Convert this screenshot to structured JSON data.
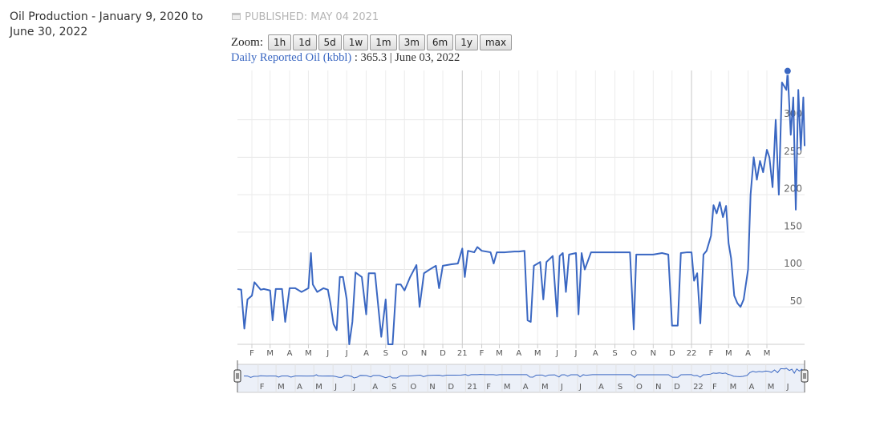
{
  "header": {
    "title": "Oil Production - January 9, 2020 to June 30, 2022",
    "published": "PUBLISHED: MAY 04 2021"
  },
  "zoom": {
    "label": "Zoom:",
    "buttons": [
      "1h",
      "1d",
      "5d",
      "1w",
      "1m",
      "3m",
      "6m",
      "1y",
      "max"
    ]
  },
  "tooltip": {
    "value": 365.3,
    "label": ": 365.3",
    "date": "| June 03, 2022",
    "x": "2022-06-03"
  },
  "chart_data": {
    "type": "line",
    "series": [
      {
        "name": "Daily Reported Oil (kbbl)",
        "color": "#3a67c2"
      }
    ],
    "x": [
      "2020-01-09",
      "2020-01-15",
      "2020-01-20",
      "2020-01-25",
      "2020-02-01",
      "2020-02-05",
      "2020-02-15",
      "2020-02-20",
      "2020-03-01",
      "2020-03-05",
      "2020-03-10",
      "2020-03-20",
      "2020-03-25",
      "2020-04-01",
      "2020-04-10",
      "2020-04-20",
      "2020-05-01",
      "2020-05-05",
      "2020-05-08",
      "2020-05-15",
      "2020-05-25",
      "2020-06-01",
      "2020-06-05",
      "2020-06-10",
      "2020-06-15",
      "2020-06-20",
      "2020-06-25",
      "2020-07-01",
      "2020-07-05",
      "2020-07-10",
      "2020-07-15",
      "2020-07-25",
      "2020-08-01",
      "2020-08-05",
      "2020-08-15",
      "2020-08-25",
      "2020-09-01",
      "2020-09-05",
      "2020-09-12",
      "2020-09-18",
      "2020-09-25",
      "2020-10-01",
      "2020-10-10",
      "2020-10-20",
      "2020-10-25",
      "2020-11-01",
      "2020-11-10",
      "2020-11-20",
      "2020-11-25",
      "2020-12-01",
      "2020-12-15",
      "2020-12-25",
      "2021-01-01",
      "2021-01-05",
      "2021-01-10",
      "2021-01-20",
      "2021-01-25",
      "2021-02-01",
      "2021-02-15",
      "2021-02-20",
      "2021-02-25",
      "2021-03-10",
      "2021-03-25",
      "2021-04-01",
      "2021-04-10",
      "2021-04-15",
      "2021-04-20",
      "2021-04-25",
      "2021-05-01",
      "2021-05-05",
      "2021-05-10",
      "2021-05-15",
      "2021-05-25",
      "2021-06-01",
      "2021-06-05",
      "2021-06-10",
      "2021-06-15",
      "2021-06-20",
      "2021-07-01",
      "2021-07-05",
      "2021-07-10",
      "2021-07-15",
      "2021-07-25",
      "2021-08-01",
      "2021-08-10",
      "2021-08-20",
      "2021-09-01",
      "2021-09-15",
      "2021-09-25",
      "2021-10-01",
      "2021-10-05",
      "2021-10-20",
      "2021-11-01",
      "2021-11-15",
      "2021-11-25",
      "2021-12-01",
      "2021-12-10",
      "2021-12-15",
      "2021-12-25",
      "2022-01-01",
      "2022-01-05",
      "2022-01-10",
      "2022-01-15",
      "2022-01-20",
      "2022-01-25",
      "2022-02-01",
      "2022-02-05",
      "2022-02-10",
      "2022-02-15",
      "2022-02-20",
      "2022-02-25",
      "2022-03-01",
      "2022-03-05",
      "2022-03-10",
      "2022-03-15",
      "2022-03-20",
      "2022-03-25",
      "2022-04-01",
      "2022-04-05",
      "2022-04-10",
      "2022-04-15",
      "2022-04-20",
      "2022-04-25",
      "2022-05-01",
      "2022-05-05",
      "2022-05-10",
      "2022-05-15",
      "2022-05-20",
      "2022-05-25",
      "2022-06-01",
      "2022-06-03",
      "2022-06-08",
      "2022-06-12",
      "2022-06-16",
      "2022-06-20",
      "2022-06-24",
      "2022-06-28",
      "2022-06-30"
    ],
    "values": [
      74,
      73,
      21,
      60,
      65,
      83,
      73,
      74,
      72,
      32,
      74,
      74,
      30,
      75,
      75,
      70,
      75,
      122,
      80,
      70,
      75,
      73,
      55,
      27,
      19,
      90,
      90,
      60,
      0,
      30,
      96,
      90,
      40,
      95,
      95,
      10,
      60,
      0,
      0,
      80,
      80,
      72,
      90,
      106,
      50,
      95,
      100,
      105,
      75,
      105,
      107,
      108,
      128,
      90,
      125,
      123,
      130,
      125,
      123,
      108,
      123,
      123,
      124,
      124,
      125,
      32,
      30,
      105,
      108,
      110,
      60,
      110,
      118,
      37,
      118,
      122,
      70,
      120,
      122,
      40,
      122,
      100,
      123,
      123,
      123,
      123,
      123,
      123,
      123,
      20,
      120,
      120,
      120,
      122,
      120,
      25,
      25,
      122,
      123,
      123,
      85,
      95,
      28,
      120,
      125,
      145,
      186,
      175,
      190,
      170,
      185,
      135,
      115,
      65,
      55,
      50,
      60,
      100,
      200,
      250,
      220,
      245,
      230,
      260,
      250,
      210,
      300,
      200,
      350,
      340,
      365.3,
      280,
      330,
      180,
      340,
      260,
      330,
      265
    ],
    "xlim": [
      "2020-01-09",
      "2022-06-30"
    ],
    "xticks": [
      {
        "value": "2020-02-01",
        "label": "F"
      },
      {
        "value": "2020-03-01",
        "label": "M"
      },
      {
        "value": "2020-04-01",
        "label": "A"
      },
      {
        "value": "2020-05-01",
        "label": "M"
      },
      {
        "value": "2020-06-01",
        "label": "J"
      },
      {
        "value": "2020-07-01",
        "label": "J"
      },
      {
        "value": "2020-08-01",
        "label": "A"
      },
      {
        "value": "2020-09-01",
        "label": "S"
      },
      {
        "value": "2020-10-01",
        "label": "O"
      },
      {
        "value": "2020-11-01",
        "label": "N"
      },
      {
        "value": "2020-12-01",
        "label": "D"
      },
      {
        "value": "2021-01-01",
        "label": "21"
      },
      {
        "value": "2021-02-01",
        "label": "F"
      },
      {
        "value": "2021-03-01",
        "label": "M"
      },
      {
        "value": "2021-04-01",
        "label": "A"
      },
      {
        "value": "2021-05-01",
        "label": "M"
      },
      {
        "value": "2021-06-01",
        "label": "J"
      },
      {
        "value": "2021-07-01",
        "label": "J"
      },
      {
        "value": "2021-08-01",
        "label": "A"
      },
      {
        "value": "2021-09-01",
        "label": "S"
      },
      {
        "value": "2021-10-01",
        "label": "O"
      },
      {
        "value": "2021-11-01",
        "label": "N"
      },
      {
        "value": "2021-12-01",
        "label": "D"
      },
      {
        "value": "2022-01-01",
        "label": "22"
      },
      {
        "value": "2022-02-01",
        "label": "F"
      },
      {
        "value": "2022-03-01",
        "label": "M"
      },
      {
        "value": "2022-04-01",
        "label": "A"
      },
      {
        "value": "2022-05-01",
        "label": "M"
      }
    ],
    "ylim": [
      0,
      366
    ],
    "yticks": [
      50,
      100,
      150,
      200,
      250,
      300
    ],
    "grid": true,
    "navigator": {
      "xticks": [
        {
          "value": "2020-02-01",
          "label": "F"
        },
        {
          "value": "2020-03-01",
          "label": "M"
        },
        {
          "value": "2020-04-01",
          "label": "A"
        },
        {
          "value": "2020-05-01",
          "label": "M"
        },
        {
          "value": "2020-06-01",
          "label": "J"
        },
        {
          "value": "2020-07-01",
          "label": "J"
        },
        {
          "value": "2020-08-01",
          "label": "A"
        },
        {
          "value": "2020-09-01",
          "label": "S"
        },
        {
          "value": "2020-10-01",
          "label": "O"
        },
        {
          "value": "2020-11-01",
          "label": "N"
        },
        {
          "value": "2020-12-01",
          "label": "D"
        },
        {
          "value": "2021-01-01",
          "label": "21"
        },
        {
          "value": "2021-02-01",
          "label": "F"
        },
        {
          "value": "2021-03-01",
          "label": "M"
        },
        {
          "value": "2021-04-01",
          "label": "A"
        },
        {
          "value": "2021-05-01",
          "label": "M"
        },
        {
          "value": "2021-06-01",
          "label": "J"
        },
        {
          "value": "2021-07-01",
          "label": "J"
        },
        {
          "value": "2021-08-01",
          "label": "A"
        },
        {
          "value": "2021-09-01",
          "label": "S"
        },
        {
          "value": "2021-10-01",
          "label": "O"
        },
        {
          "value": "2021-11-01",
          "label": "N"
        },
        {
          "value": "2021-12-01",
          "label": "D"
        },
        {
          "value": "2022-01-01",
          "label": "22"
        },
        {
          "value": "2022-02-01",
          "label": "F"
        },
        {
          "value": "2022-03-01",
          "label": "M"
        },
        {
          "value": "2022-04-01",
          "label": "A"
        },
        {
          "value": "2022-05-01",
          "label": "M"
        },
        {
          "value": "2022-06-01",
          "label": "J"
        }
      ]
    }
  }
}
